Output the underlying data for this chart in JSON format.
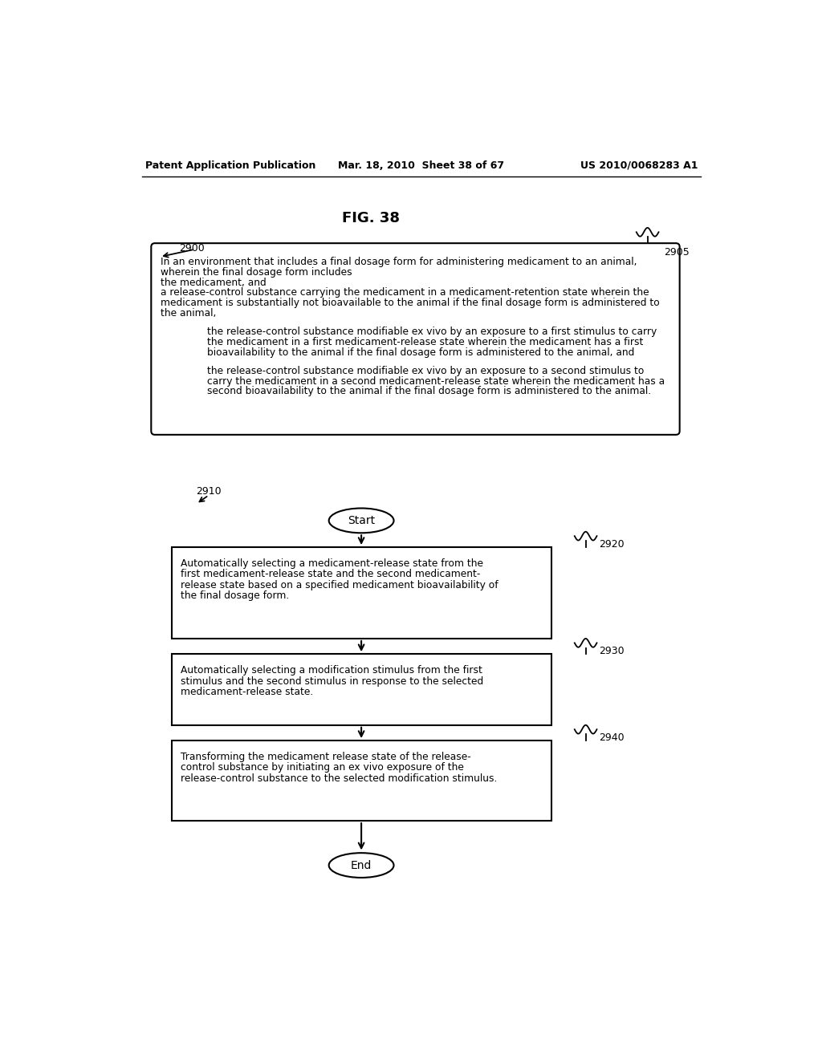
{
  "header_left": "Patent Application Publication",
  "header_mid": "Mar. 18, 2010  Sheet 38 of 67",
  "header_right": "US 2010/0068283 A1",
  "fig_title": "FIG. 38",
  "label_2900": "2900",
  "label_2905": "2905",
  "label_2910": "2910",
  "label_2920": "2920",
  "label_2930": "2930",
  "label_2940": "2940",
  "top_lines": [
    "In an environment that includes a final dosage form for administering medicament to an animal,",
    "wherein the final dosage form includes",
    "the medicament, and",
    "a release-control substance carrying the medicament in a medicament-retention state wherein the",
    "medicament is substantially not bioavailable to the animal if the final dosage form is administered to",
    "the animal,"
  ],
  "indent1_lines": [
    "the release-control substance modifiable ex vivo by an exposure to a first stimulus to carry",
    "the medicament in a first medicament-release state wherein the medicament has a first",
    "bioavailability to the animal if the final dosage form is administered to the animal, and"
  ],
  "indent2_lines": [
    "the release-control substance modifiable ex vivo by an exposure to a second stimulus to",
    "carry the medicament in a second medicament-release state wherein the medicament has a",
    "second bioavailability to the animal if the final dosage form is administered to the animal."
  ],
  "start_label": "Start",
  "end_label": "End",
  "box1_lines": [
    "Automatically selecting a medicament-release state from the",
    "first medicament-release state and the second medicament-",
    "release state based on a specified medicament bioavailability of",
    "the final dosage form."
  ],
  "box2_lines": [
    "Automatically selecting a modification stimulus from the first",
    "stimulus and the second stimulus in response to the selected",
    "medicament-release state."
  ],
  "box3_lines": [
    "Transforming the medicament release state of the release-",
    "control substance by initiating an ex vivo exposure of the",
    "release-control substance to the selected modification stimulus."
  ],
  "background_color": "#ffffff",
  "text_color": "#000000"
}
